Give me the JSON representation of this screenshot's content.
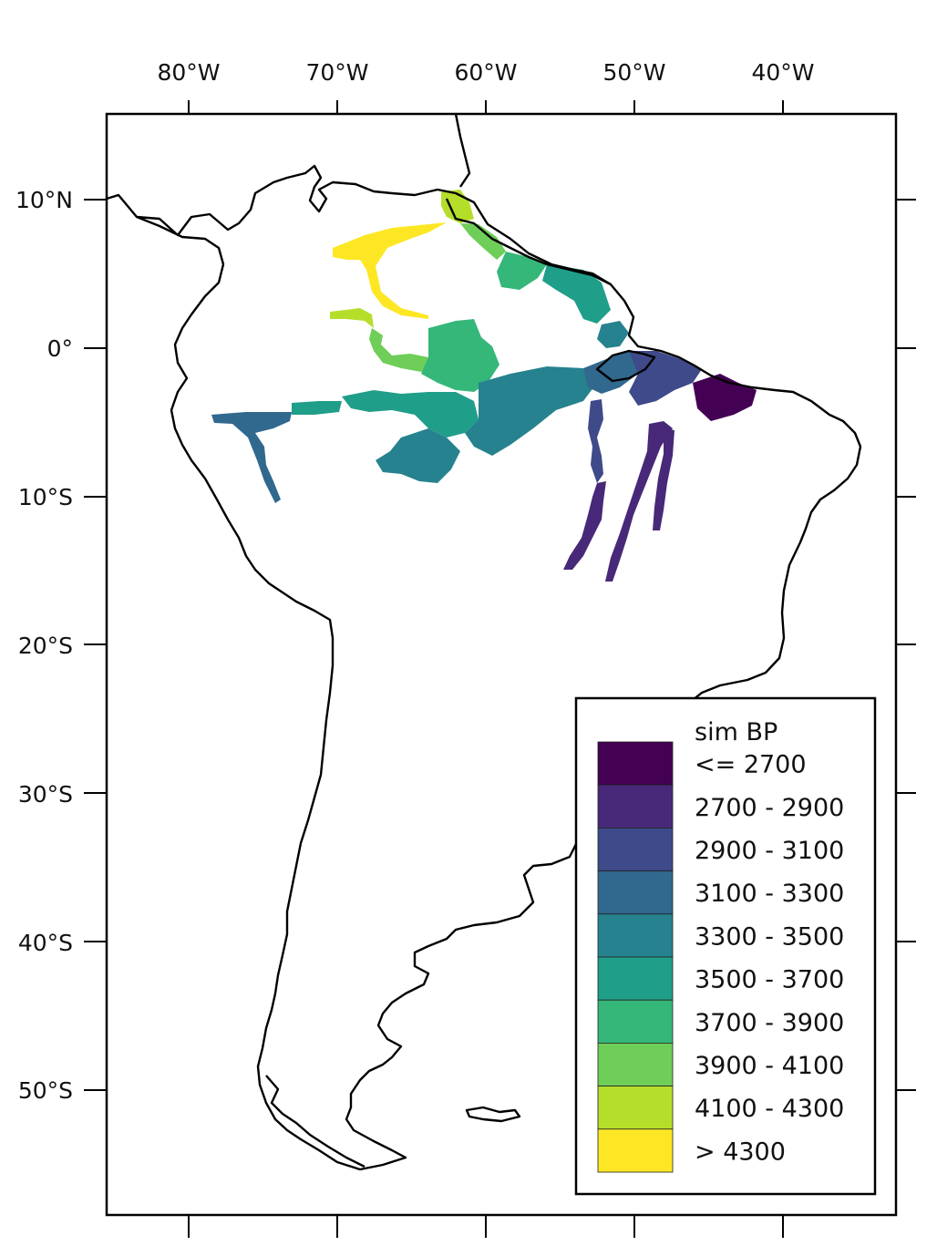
{
  "map": {
    "lon_ticks": [
      "80°W",
      "70°W",
      "60°W",
      "50°W",
      "40°W"
    ],
    "lat_ticks": [
      "10°N",
      "0°",
      "10°S",
      "20°S",
      "30°S",
      "40°S",
      "50°S"
    ],
    "lon_values": [
      -80,
      -70,
      -60,
      -50,
      -40
    ],
    "lat_values": [
      10,
      0,
      -10,
      -20,
      -30,
      -40,
      -50
    ],
    "extent": {
      "lon": [
        -85.6,
        -32.2
      ],
      "lat": [
        15.2,
        -58.6
      ]
    }
  },
  "legend": {
    "title": "sim BP",
    "classes": [
      {
        "label": "<= 2700",
        "color": "#440154"
      },
      {
        "label": "2700 - 2900",
        "color": "#482878"
      },
      {
        "label": "2900 - 3100",
        "color": "#3e4a89"
      },
      {
        "label": "3100 - 3300",
        "color": "#31688e"
      },
      {
        "label": "3300 - 3500",
        "color": "#26828e"
      },
      {
        "label": "3500 - 3700",
        "color": "#1f9e89"
      },
      {
        "label": "3700 - 3900",
        "color": "#35b779"
      },
      {
        "label": "3900 - 4100",
        "color": "#6ece58"
      },
      {
        "label": "4100 - 4300",
        "color": "#b5de2b"
      },
      {
        "label": "> 4300",
        "color": "#fde725"
      }
    ]
  }
}
